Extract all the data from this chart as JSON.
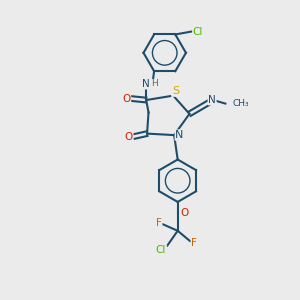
{
  "background_color": "#ebebeb",
  "bond_color": "#1e4d6b",
  "atom_colors": {
    "N": "#1e4d6b",
    "O": "#cc2200",
    "S": "#ccaa00",
    "F": "#cc6600",
    "Cl": "#44bb00",
    "H": "#666666"
  },
  "figsize": [
    3.0,
    3.0
  ],
  "dpi": 100
}
